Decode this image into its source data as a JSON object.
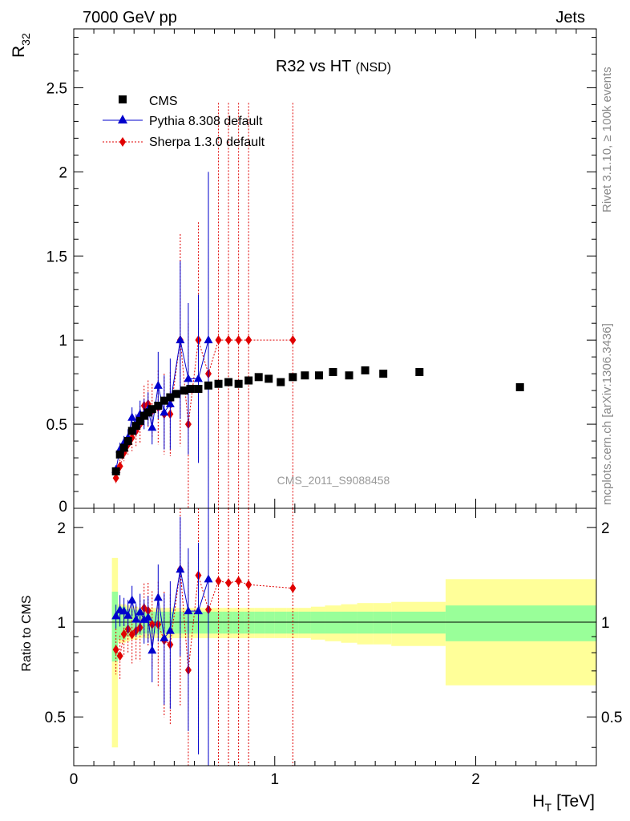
{
  "header": {
    "left": "7000 GeV pp",
    "right": "Jets"
  },
  "side": {
    "rivet": "Rivet 3.1.10, ≥ 100k events",
    "mcplots": "mcplots.cern.ch [arXiv:1306.3436]"
  },
  "watermark": "CMS_2011_S9088458",
  "chart_data": {
    "type": "scatter",
    "title": "R32 vs HT",
    "title_sub": "(NSD)",
    "xlabel": "H",
    "xlabel_sub": "T",
    "xlabel_unit": "[TeV]",
    "ylabel": "R",
    "ylabel_sub": "32",
    "ratio_ylabel": "Ratio to CMS",
    "xlim": [
      0,
      2.6
    ],
    "ylim": [
      0,
      2.85
    ],
    "ratio_ylim": [
      0.35,
      2.3
    ],
    "ratio_log": true,
    "x_ticks": [
      0,
      1,
      2
    ],
    "x_tick_labels": [
      "0",
      "1",
      "2"
    ],
    "y_ticks": [
      0.5,
      1,
      1.5,
      2,
      2.5
    ],
    "y_tick_labels": [
      "0.5",
      "1",
      "1.5",
      "2",
      "2.5"
    ],
    "y_zero_label": "0",
    "ratio_ticks": [
      0.5,
      1,
      2
    ],
    "ratio_tick_labels": [
      "0.5",
      "1",
      "2"
    ],
    "legend": [
      "CMS",
      "Pythia 8.308 default",
      "Sherpa 1.3.0 default"
    ],
    "colors": {
      "cms": "#000000",
      "pythia": "#0000cc",
      "sherpa": "#e00000",
      "band_inner": "#99ff99",
      "band_outer": "#ffff99"
    },
    "cms": {
      "name": "CMS",
      "x": [
        0.21,
        0.23,
        0.25,
        0.27,
        0.29,
        0.31,
        0.33,
        0.35,
        0.37,
        0.39,
        0.42,
        0.45,
        0.48,
        0.51,
        0.55,
        0.58,
        0.62,
        0.67,
        0.72,
        0.77,
        0.82,
        0.87,
        0.92,
        0.97,
        1.03,
        1.09,
        1.15,
        1.22,
        1.29,
        1.37,
        1.45,
        1.54,
        1.72,
        2.22
      ],
      "y": [
        0.22,
        0.32,
        0.36,
        0.4,
        0.46,
        0.49,
        0.52,
        0.55,
        0.57,
        0.59,
        0.61,
        0.64,
        0.66,
        0.68,
        0.7,
        0.71,
        0.71,
        0.73,
        0.74,
        0.75,
        0.74,
        0.76,
        0.78,
        0.77,
        0.75,
        0.78,
        0.79,
        0.79,
        0.81,
        0.79,
        0.82,
        0.8,
        0.81,
        0.72
      ]
    },
    "pythia": {
      "name": "Pythia 8.308 default",
      "x": [
        0.21,
        0.23,
        0.25,
        0.27,
        0.29,
        0.31,
        0.33,
        0.35,
        0.37,
        0.39,
        0.42,
        0.45,
        0.48,
        0.53,
        0.57,
        0.62,
        0.67
      ],
      "y": [
        0.23,
        0.35,
        0.39,
        0.42,
        0.54,
        0.5,
        0.56,
        0.56,
        0.59,
        0.48,
        0.73,
        0.57,
        0.62,
        1.0,
        0.77,
        0.77,
        1.0
      ],
      "err": [
        0.02,
        0.04,
        0.04,
        0.05,
        0.06,
        0.06,
        0.08,
        0.09,
        0.1,
        0.1,
        0.2,
        0.22,
        0.27,
        0.47,
        0.45,
        0.5,
        1.0
      ]
    },
    "sherpa": {
      "name": "Sherpa 1.3.0 default",
      "x": [
        0.21,
        0.23,
        0.25,
        0.27,
        0.29,
        0.31,
        0.33,
        0.35,
        0.37,
        0.39,
        0.42,
        0.45,
        0.48,
        0.53,
        0.57,
        0.62,
        0.67,
        0.72,
        0.77,
        0.82,
        0.87,
        1.09
      ],
      "y": [
        0.18,
        0.25,
        0.33,
        0.38,
        0.42,
        0.46,
        0.5,
        0.61,
        0.62,
        0.58,
        0.6,
        0.56,
        0.56,
        1.0,
        0.5,
        1.0,
        0.8,
        1.0,
        1.0,
        1.0,
        1.0,
        1.0
      ],
      "err": [
        0.03,
        0.04,
        0.05,
        0.06,
        0.08,
        0.09,
        0.11,
        0.12,
        0.14,
        0.16,
        0.22,
        0.24,
        0.25,
        0.63,
        0.6,
        0.7,
        0.8,
        1.41,
        1.41,
        1.41,
        1.41,
        1.41
      ]
    },
    "band": {
      "edges": [
        0.19,
        0.22,
        0.24,
        0.26,
        0.28,
        0.3,
        0.32,
        0.34,
        0.36,
        0.38,
        0.41,
        0.43,
        0.46,
        0.5,
        0.53,
        0.56,
        0.6,
        0.65,
        0.69,
        0.74,
        0.79,
        0.85,
        0.9,
        0.95,
        1.0,
        1.06,
        1.12,
        1.18,
        1.25,
        1.33,
        1.41,
        1.49,
        1.58,
        1.85,
        2.6
      ],
      "inner": [
        0.25,
        0.12,
        0.12,
        0.1,
        0.1,
        0.09,
        0.09,
        0.08,
        0.08,
        0.08,
        0.08,
        0.08,
        0.08,
        0.08,
        0.08,
        0.08,
        0.08,
        0.08,
        0.08,
        0.08,
        0.08,
        0.08,
        0.08,
        0.08,
        0.08,
        0.08,
        0.08,
        0.08,
        0.08,
        0.08,
        0.08,
        0.08,
        0.08,
        0.13
      ],
      "outer": [
        0.6,
        0.14,
        0.14,
        0.13,
        0.12,
        0.12,
        0.11,
        0.11,
        0.11,
        0.11,
        0.11,
        0.11,
        0.11,
        0.11,
        0.11,
        0.11,
        0.11,
        0.11,
        0.11,
        0.11,
        0.11,
        0.11,
        0.11,
        0.11,
        0.11,
        0.11,
        0.11,
        0.12,
        0.13,
        0.14,
        0.15,
        0.15,
        0.16,
        0.37
      ]
    }
  }
}
